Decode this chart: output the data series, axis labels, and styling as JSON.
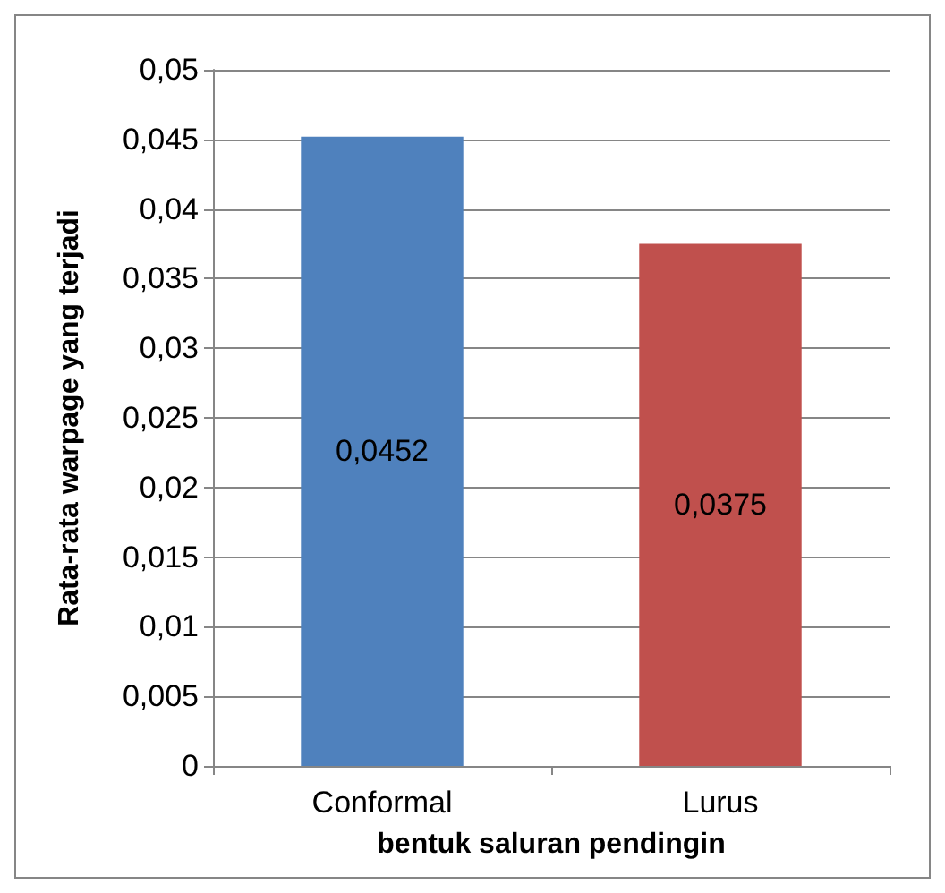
{
  "chart_data": {
    "type": "bar",
    "xlabel": "bentuk saluran pendingin",
    "ylabel": "Rata-rata warpage yang terjadi",
    "categories": [
      "Conformal",
      "Lurus"
    ],
    "values": [
      0.0452,
      0.0375
    ],
    "colors": [
      "#4f81bd",
      "#c0504d"
    ],
    "value_labels": [
      "0,0452",
      "0,0375"
    ],
    "ylim": [
      0,
      0.05
    ],
    "yticks": [
      {
        "value": 0,
        "label": "0"
      },
      {
        "value": 0.005,
        "label": "0,005"
      },
      {
        "value": 0.01,
        "label": "0,01"
      },
      {
        "value": 0.015,
        "label": "0,015"
      },
      {
        "value": 0.02,
        "label": "0,02"
      },
      {
        "value": 0.025,
        "label": "0,025"
      },
      {
        "value": 0.03,
        "label": "0,03"
      },
      {
        "value": 0.035,
        "label": "0,035"
      },
      {
        "value": 0.04,
        "label": "0,04"
      },
      {
        "value": 0.045,
        "label": "0,045"
      },
      {
        "value": 0.05,
        "label": "0,05"
      }
    ],
    "grid": "y"
  }
}
